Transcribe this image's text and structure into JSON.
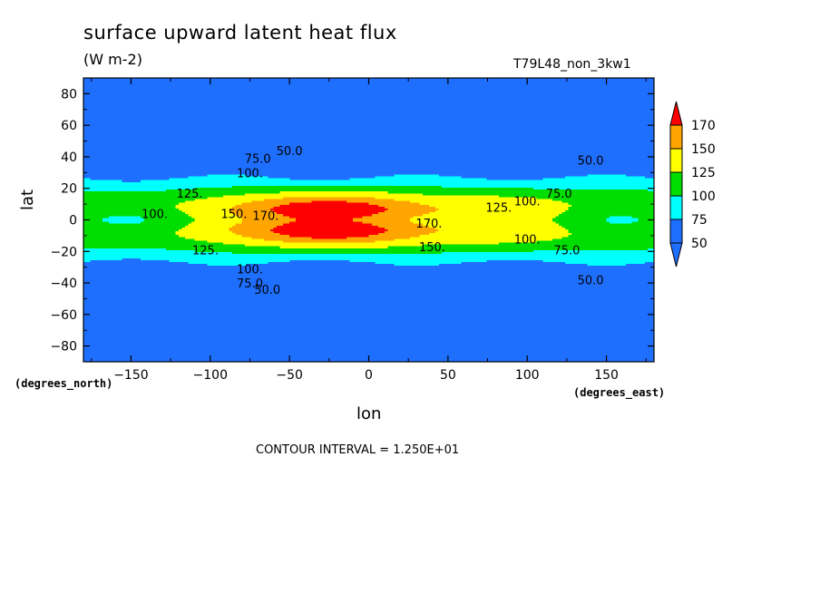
{
  "chart_data": {
    "type": "heatmap",
    "title": "surface upward latent heat flux",
    "units": "(W m-2)",
    "run_label": "T79L48_non_3kw1",
    "xlabel": "lon",
    "ylabel": "lat",
    "x_unit_label": "(degrees_east)",
    "y_unit_label": "(degrees_north)",
    "xlim": [
      -180,
      180
    ],
    "ylim": [
      -90,
      90
    ],
    "x_ticks": [
      -150,
      -100,
      -50,
      0,
      50,
      100,
      150
    ],
    "y_ticks": [
      80,
      60,
      40,
      20,
      0,
      -20,
      -40,
      -60,
      -80
    ],
    "contour_interval_text": "CONTOUR INTERVAL = 1.250E+01",
    "colorbar": {
      "levels": [
        50,
        75,
        100,
        125,
        150,
        170
      ],
      "colors": [
        "#1f6fff",
        "#00ffff",
        "#00dd00",
        "#ffff00",
        "#ffa500",
        "#ff0000"
      ],
      "below_color": "#1f6fff",
      "above_color": "#ff0000"
    },
    "background_color": "#1f6fff",
    "contour_labels": [
      "50.0",
      "75.0",
      "100.",
      "125.",
      "150.",
      "170."
    ],
    "description": "Latent heat flux peaks (>170) in a tropical core between about lon -90 and 40, lat -20 to 20, decreasing poleward to below 50 beyond about 40 degrees latitude."
  }
}
